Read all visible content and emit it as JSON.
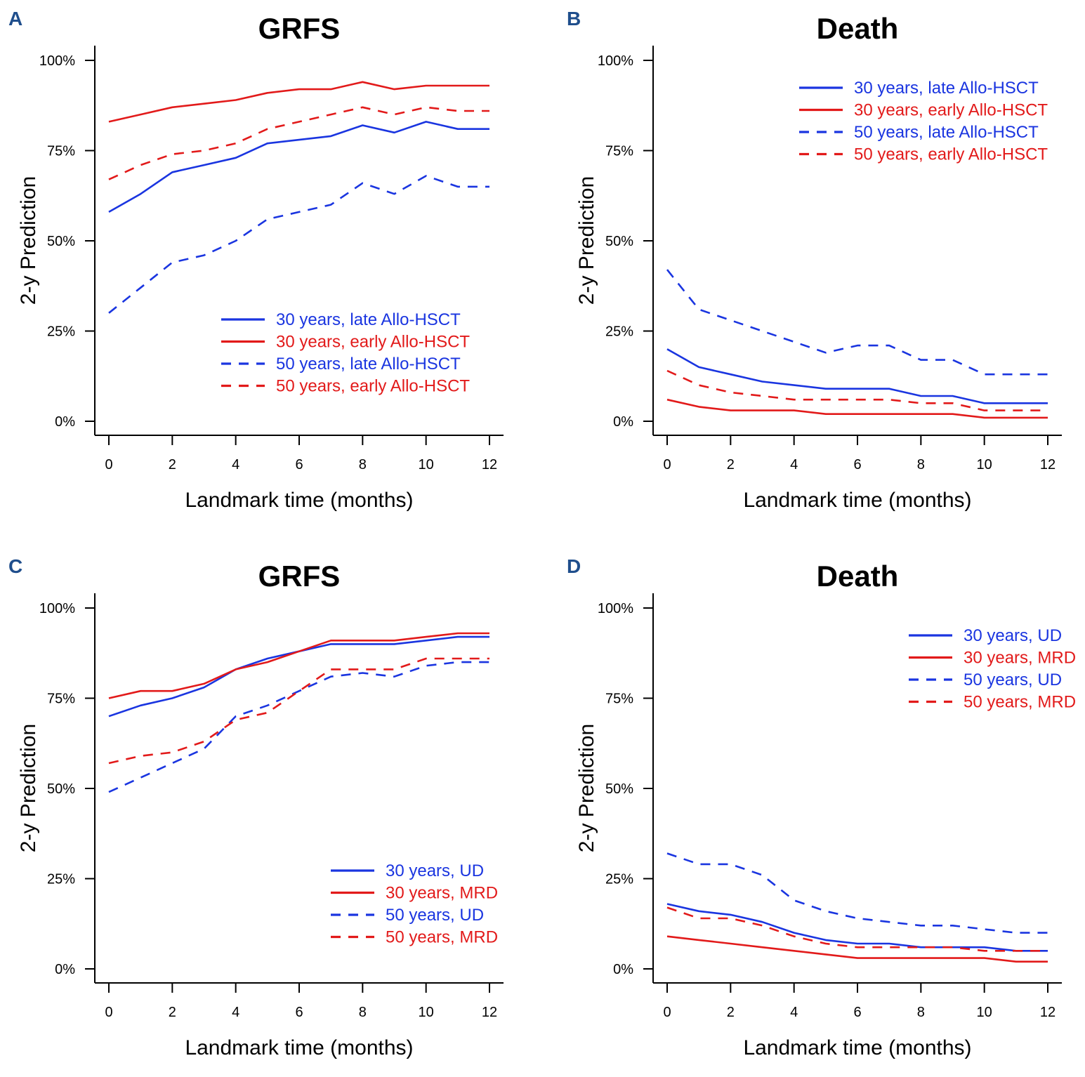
{
  "colors": {
    "blue": "#1a35e0",
    "red": "#e21a1a"
  },
  "chart_data": [
    {
      "letter": "A",
      "type": "line",
      "title": "GRFS",
      "xlabel": "Landmark time (months)",
      "ylabel": "2-y Prediction",
      "xlim": [
        0,
        12
      ],
      "ylim": [
        0,
        100
      ],
      "xticks": [
        0,
        2,
        4,
        6,
        8,
        10,
        12
      ],
      "yticks": [
        0,
        25,
        50,
        75,
        100
      ],
      "ytick_labels": [
        "0%",
        "25%",
        "50%",
        "75%",
        "100%"
      ],
      "legend_position": "bottom-right",
      "x": [
        0,
        1,
        2,
        3,
        4,
        5,
        6,
        7,
        8,
        9,
        10,
        11,
        12
      ],
      "series": [
        {
          "name": "30 years, late Allo-HSCT",
          "color": "blue",
          "dash": false,
          "values": [
            58,
            63,
            69,
            71,
            73,
            77,
            78,
            79,
            82,
            80,
            83,
            81,
            81
          ]
        },
        {
          "name": "30 years, early Allo-HSCT",
          "color": "red",
          "dash": false,
          "values": [
            83,
            85,
            87,
            88,
            89,
            91,
            92,
            92,
            94,
            92,
            93,
            93,
            93
          ]
        },
        {
          "name": "50 years, late Allo-HSCT",
          "color": "blue",
          "dash": true,
          "values": [
            30,
            37,
            44,
            46,
            50,
            56,
            58,
            60,
            66,
            63,
            68,
            65,
            65
          ]
        },
        {
          "name": "50 years, early Allo-HSCT",
          "color": "red",
          "dash": true,
          "values": [
            67,
            71,
            74,
            75,
            77,
            81,
            83,
            85,
            87,
            85,
            87,
            86,
            86
          ]
        }
      ]
    },
    {
      "letter": "B",
      "type": "line",
      "title": "Death",
      "xlabel": "Landmark time (months)",
      "ylabel": "2-y Prediction",
      "xlim": [
        0,
        12
      ],
      "ylim": [
        0,
        100
      ],
      "xticks": [
        0,
        2,
        4,
        6,
        8,
        10,
        12
      ],
      "yticks": [
        0,
        25,
        50,
        75,
        100
      ],
      "ytick_labels": [
        "0%",
        "25%",
        "50%",
        "75%",
        "100%"
      ],
      "legend_position": "top-right",
      "x": [
        0,
        1,
        2,
        3,
        4,
        5,
        6,
        7,
        8,
        9,
        10,
        11,
        12
      ],
      "series": [
        {
          "name": "30 years, late Allo-HSCT",
          "color": "blue",
          "dash": false,
          "values": [
            20,
            15,
            13,
            11,
            10,
            9,
            9,
            9,
            7,
            7,
            5,
            5,
            5
          ]
        },
        {
          "name": "30 years, early Allo-HSCT",
          "color": "red",
          "dash": false,
          "values": [
            6,
            4,
            3,
            3,
            3,
            2,
            2,
            2,
            2,
            2,
            1,
            1,
            1
          ]
        },
        {
          "name": "50 years, late Allo-HSCT",
          "color": "blue",
          "dash": true,
          "values": [
            42,
            31,
            28,
            25,
            22,
            19,
            21,
            21,
            17,
            17,
            13,
            13,
            13
          ]
        },
        {
          "name": "50 years, early Allo-HSCT",
          "color": "red",
          "dash": true,
          "values": [
            14,
            10,
            8,
            7,
            6,
            6,
            6,
            6,
            5,
            5,
            3,
            3,
            3
          ]
        }
      ]
    },
    {
      "letter": "C",
      "type": "line",
      "title": "GRFS",
      "xlabel": "Landmark time (months)",
      "ylabel": "2-y Prediction",
      "xlim": [
        0,
        12
      ],
      "ylim": [
        0,
        100
      ],
      "xticks": [
        0,
        2,
        4,
        6,
        8,
        10,
        12
      ],
      "yticks": [
        0,
        25,
        50,
        75,
        100
      ],
      "ytick_labels": [
        "0%",
        "25%",
        "50%",
        "75%",
        "100%"
      ],
      "legend_position": "bottom-right",
      "x": [
        0,
        1,
        2,
        3,
        4,
        5,
        6,
        7,
        8,
        9,
        10,
        11,
        12
      ],
      "series": [
        {
          "name": "30 years, UD",
          "color": "blue",
          "dash": false,
          "values": [
            70,
            73,
            75,
            78,
            83,
            86,
            88,
            90,
            90,
            90,
            91,
            92,
            92
          ]
        },
        {
          "name": "30 years, MRD",
          "color": "red",
          "dash": false,
          "values": [
            75,
            77,
            77,
            79,
            83,
            85,
            88,
            91,
            91,
            91,
            92,
            93,
            93
          ]
        },
        {
          "name": "50 years, UD",
          "color": "blue",
          "dash": true,
          "values": [
            49,
            53,
            57,
            61,
            70,
            73,
            77,
            81,
            82,
            81,
            84,
            85,
            85
          ]
        },
        {
          "name": "50 years, MRD",
          "color": "red",
          "dash": true,
          "values": [
            57,
            59,
            60,
            63,
            69,
            71,
            77,
            83,
            83,
            83,
            86,
            86,
            86
          ]
        }
      ]
    },
    {
      "letter": "D",
      "type": "line",
      "title": "Death",
      "xlabel": "Landmark time (months)",
      "ylabel": "2-y Prediction",
      "xlim": [
        0,
        12
      ],
      "ylim": [
        0,
        100
      ],
      "xticks": [
        0,
        2,
        4,
        6,
        8,
        10,
        12
      ],
      "yticks": [
        0,
        25,
        50,
        75,
        100
      ],
      "ytick_labels": [
        "0%",
        "25%",
        "50%",
        "75%",
        "100%"
      ],
      "legend_position": "top-right",
      "x": [
        0,
        1,
        2,
        3,
        4,
        5,
        6,
        7,
        8,
        9,
        10,
        11,
        12
      ],
      "series": [
        {
          "name": "30 years, UD",
          "color": "blue",
          "dash": false,
          "values": [
            18,
            16,
            15,
            13,
            10,
            8,
            7,
            7,
            6,
            6,
            6,
            5,
            5
          ]
        },
        {
          "name": "30 years, MRD",
          "color": "red",
          "dash": false,
          "values": [
            9,
            8,
            7,
            6,
            5,
            4,
            3,
            3,
            3,
            3,
            3,
            2,
            2
          ]
        },
        {
          "name": "50 years, UD",
          "color": "blue",
          "dash": true,
          "values": [
            32,
            29,
            29,
            26,
            19,
            16,
            14,
            13,
            12,
            12,
            11,
            10,
            10
          ]
        },
        {
          "name": "50 years, MRD",
          "color": "red",
          "dash": true,
          "values": [
            17,
            14,
            14,
            12,
            9,
            7,
            6,
            6,
            6,
            6,
            5,
            5,
            5
          ]
        }
      ]
    }
  ]
}
